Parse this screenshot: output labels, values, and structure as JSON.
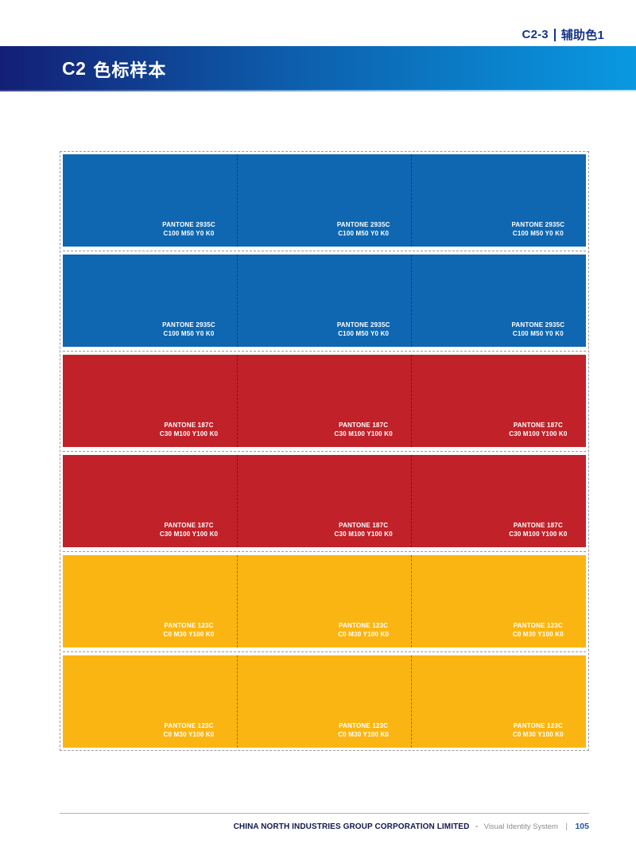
{
  "header": {
    "section_code": "C2-3",
    "section_name": "辅助色1"
  },
  "title": {
    "code": "C2",
    "text": "色标样本"
  },
  "colors": {
    "accent_navy": "#16348c",
    "titlebar_gradient_left": "#131f75",
    "titlebar_gradient_right": "#0999e1",
    "swatch_blue": "#0f67b2",
    "swatch_red": "#c1222a",
    "swatch_yellow": "#fbb513",
    "page_number_blue": "#1d55a7"
  },
  "swatch_rows": [
    {
      "color": "#0f67b2",
      "chips": [
        {
          "pantone": "PANTONE 2935C",
          "cmyk": "C100 M50 Y0 K0"
        },
        {
          "pantone": "PANTONE 2935C",
          "cmyk": "C100 M50 Y0 K0"
        },
        {
          "pantone": "PANTONE 2935C",
          "cmyk": "C100 M50 Y0 K0"
        }
      ]
    },
    {
      "color": "#0f67b2",
      "chips": [
        {
          "pantone": "PANTONE 2935C",
          "cmyk": "C100 M50 Y0 K0"
        },
        {
          "pantone": "PANTONE 2935C",
          "cmyk": "C100 M50 Y0 K0"
        },
        {
          "pantone": "PANTONE 2935C",
          "cmyk": "C100 M50 Y0 K0"
        }
      ]
    },
    {
      "color": "#c1222a",
      "chips": [
        {
          "pantone": "PANTONE 187C",
          "cmyk": "C30 M100 Y100 K0"
        },
        {
          "pantone": "PANTONE 187C",
          "cmyk": "C30 M100 Y100 K0"
        },
        {
          "pantone": "PANTONE 187C",
          "cmyk": "C30 M100 Y100 K0"
        }
      ]
    },
    {
      "color": "#c1222a",
      "chips": [
        {
          "pantone": "PANTONE 187C",
          "cmyk": "C30 M100 Y100 K0"
        },
        {
          "pantone": "PANTONE 187C",
          "cmyk": "C30 M100 Y100 K0"
        },
        {
          "pantone": "PANTONE 187C",
          "cmyk": "C30 M100 Y100 K0"
        }
      ]
    },
    {
      "color": "#fbb513",
      "chips": [
        {
          "pantone": "PANTONE 123C",
          "cmyk": "C0 M30 Y100 K0"
        },
        {
          "pantone": "PANTONE 123C",
          "cmyk": "C0 M30 Y100 K0"
        },
        {
          "pantone": "PANTONE 123C",
          "cmyk": "C0 M30 Y100 K0"
        }
      ]
    },
    {
      "color": "#fbb513",
      "chips": [
        {
          "pantone": "PANTONE 123C",
          "cmyk": "C0 M30 Y100 K0"
        },
        {
          "pantone": "PANTONE 123C",
          "cmyk": "C0 M30 Y100 K0"
        },
        {
          "pantone": "PANTONE 123C",
          "cmyk": "C0 M30 Y100 K0"
        }
      ]
    }
  ],
  "footer": {
    "company": "CHINA NORTH INDUSTRIES GROUP CORPORATION LIMITED",
    "dash": "-",
    "system": "Visual Identity System",
    "bar": "|",
    "page_number": "105"
  }
}
